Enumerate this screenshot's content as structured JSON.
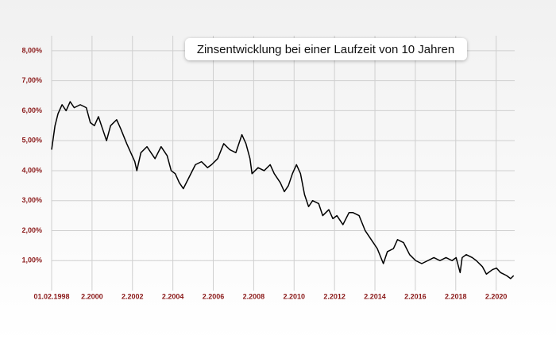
{
  "chart_data": {
    "type": "line",
    "title": "Zinsentwicklung bei einer Laufzeit von 10 Jahren",
    "color": "#000000",
    "grid": true,
    "xlim": [
      1998.083,
      2021.0
    ],
    "ylim": [
      0,
      8.5
    ],
    "xticks": [
      {
        "value": 1998.083,
        "label": "01.02.1998"
      },
      {
        "value": 2000.083,
        "label": "2.2000"
      },
      {
        "value": 2002.083,
        "label": "2.2002"
      },
      {
        "value": 2004.083,
        "label": "2.2004"
      },
      {
        "value": 2006.083,
        "label": "2.2006"
      },
      {
        "value": 2008.083,
        "label": "2.2008"
      },
      {
        "value": 2010.083,
        "label": "2.2010"
      },
      {
        "value": 2012.083,
        "label": "2.2012"
      },
      {
        "value": 2014.083,
        "label": "2.2014"
      },
      {
        "value": 2016.083,
        "label": "2.2016"
      },
      {
        "value": 2018.083,
        "label": "2.2018"
      },
      {
        "value": 2020.083,
        "label": "2.2020"
      }
    ],
    "yticks": [
      {
        "value": 1,
        "label": "1,00%"
      },
      {
        "value": 2,
        "label": "2,00%"
      },
      {
        "value": 3,
        "label": "3,00%"
      },
      {
        "value": 4,
        "label": "4,00%"
      },
      {
        "value": 5,
        "label": "5,00%"
      },
      {
        "value": 6,
        "label": "6,00%"
      },
      {
        "value": 7,
        "label": "7,00%"
      },
      {
        "value": 8,
        "label": "8,00%"
      }
    ],
    "x": [
      1998.083,
      1998.25,
      1998.4,
      1998.6,
      1998.8,
      1999.0,
      1999.2,
      1999.5,
      1999.8,
      2000.0,
      2000.2,
      2000.4,
      2000.6,
      2000.8,
      2001.0,
      2001.3,
      2001.5,
      2001.8,
      2002.0,
      2002.2,
      2002.3,
      2002.5,
      2002.8,
      2003.0,
      2003.2,
      2003.5,
      2003.8,
      2004.0,
      2004.2,
      2004.4,
      2004.6,
      2004.9,
      2005.2,
      2005.5,
      2005.8,
      2006.0,
      2006.3,
      2006.6,
      2006.9,
      2007.2,
      2007.5,
      2007.7,
      2007.9,
      2008.0,
      2008.3,
      2008.6,
      2008.9,
      2009.1,
      2009.4,
      2009.6,
      2009.8,
      2010.0,
      2010.2,
      2010.4,
      2010.6,
      2010.8,
      2011.0,
      2011.3,
      2011.5,
      2011.8,
      2012.0,
      2012.2,
      2012.5,
      2012.8,
      2013.0,
      2013.3,
      2013.6,
      2013.9,
      2014.2,
      2014.5,
      2014.7,
      2015.0,
      2015.2,
      2015.5,
      2015.8,
      2016.1,
      2016.4,
      2016.7,
      2017.0,
      2017.3,
      2017.6,
      2017.9,
      2018.1,
      2018.3,
      2018.4,
      2018.6,
      2018.9,
      2019.1,
      2019.4,
      2019.6,
      2019.9,
      2020.1,
      2020.3,
      2020.6,
      2020.8,
      2020.95
    ],
    "values": [
      4.7,
      5.5,
      5.9,
      6.2,
      6.0,
      6.3,
      6.1,
      6.2,
      6.1,
      5.6,
      5.5,
      5.8,
      5.4,
      5.0,
      5.5,
      5.7,
      5.4,
      4.9,
      4.6,
      4.3,
      4.0,
      4.6,
      4.8,
      4.6,
      4.4,
      4.8,
      4.5,
      4.0,
      3.9,
      3.6,
      3.4,
      3.8,
      4.2,
      4.3,
      4.1,
      4.2,
      4.4,
      4.9,
      4.7,
      4.6,
      5.2,
      4.9,
      4.4,
      3.9,
      4.1,
      4.0,
      4.2,
      3.9,
      3.6,
      3.3,
      3.5,
      3.9,
      4.2,
      3.9,
      3.2,
      2.8,
      3.0,
      2.9,
      2.5,
      2.7,
      2.4,
      2.5,
      2.2,
      2.6,
      2.6,
      2.5,
      2.0,
      1.7,
      1.4,
      0.9,
      1.3,
      1.4,
      1.7,
      1.6,
      1.2,
      1.0,
      0.9,
      1.0,
      1.1,
      1.0,
      1.1,
      1.0,
      1.1,
      0.6,
      1.1,
      1.2,
      1.1,
      1.0,
      0.8,
      0.55,
      0.7,
      0.75,
      0.6,
      0.5,
      0.4,
      0.5
    ]
  }
}
